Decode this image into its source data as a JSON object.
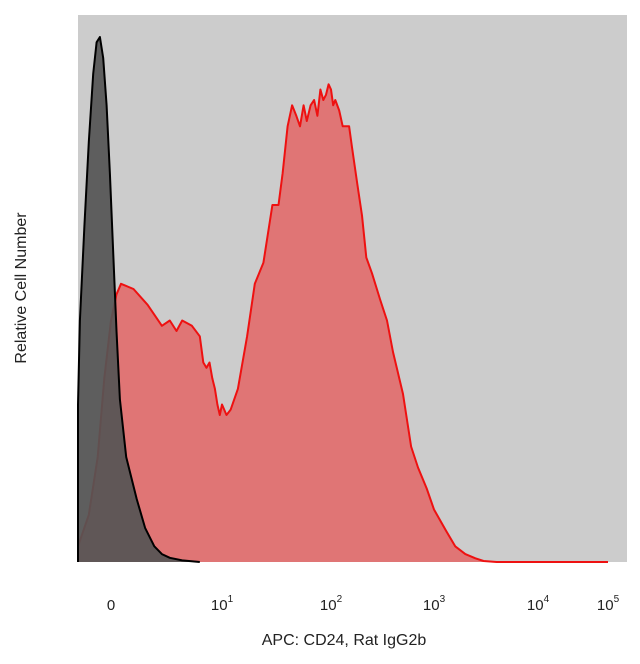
{
  "chart_data": {
    "type": "area",
    "title": "",
    "xlabel": "APC: CD24, Rat IgG2b",
    "ylabel": "Relative Cell Number",
    "x_scale": "biexponential",
    "x_ticks": [
      {
        "value": 0,
        "base": "0",
        "exp": ""
      },
      {
        "value": 10,
        "base": "10",
        "exp": "1"
      },
      {
        "value": 100,
        "base": "10",
        "exp": "2"
      },
      {
        "value": 1000,
        "base": "10",
        "exp": "3"
      },
      {
        "value": 10000,
        "base": "10",
        "exp": "4"
      },
      {
        "value": 100000,
        "base": "10",
        "exp": "5"
      }
    ],
    "ylim": [
      0,
      100
    ],
    "grid": false,
    "legend": "none",
    "background_color": "#cccccc",
    "series": [
      {
        "color": "#555555",
        "line_color": "#000000",
        "points": [
          [
            -5.2,
            0
          ],
          [
            -4.8,
            1
          ],
          [
            -4.4,
            4
          ],
          [
            -4.0,
            9
          ],
          [
            -3.6,
            18
          ],
          [
            -3.2,
            30
          ],
          [
            -2.8,
            46
          ],
          [
            -2.4,
            64
          ],
          [
            -2.0,
            80
          ],
          [
            -1.6,
            93
          ],
          [
            -1.3,
            99
          ],
          [
            -1.0,
            100
          ],
          [
            -0.7,
            96
          ],
          [
            -0.4,
            87
          ],
          [
            -0.1,
            74
          ],
          [
            0.2,
            59
          ],
          [
            0.5,
            44
          ],
          [
            0.8,
            31
          ],
          [
            1.1,
            20
          ],
          [
            1.4,
            12
          ],
          [
            1.7,
            6.5
          ],
          [
            2.1,
            3
          ],
          [
            2.5,
            1.5
          ],
          [
            3.0,
            0.8
          ],
          [
            4.0,
            0.3
          ],
          [
            6.0,
            0
          ]
        ]
      },
      {
        "color": "#e07575",
        "line_color": "#ee1111",
        "points": [
          [
            -5.2,
            0
          ],
          [
            -4.0,
            1
          ],
          [
            -3.0,
            3
          ],
          [
            -2.0,
            9
          ],
          [
            -1.2,
            20
          ],
          [
            -0.6,
            35
          ],
          [
            0,
            46
          ],
          [
            0.5,
            51
          ],
          [
            0.9,
            53
          ],
          [
            1.3,
            52
          ],
          [
            1.8,
            49
          ],
          [
            2.5,
            45
          ],
          [
            3.0,
            46
          ],
          [
            3.5,
            44
          ],
          [
            4.0,
            46
          ],
          [
            5.0,
            45
          ],
          [
            6.0,
            43
          ],
          [
            6.5,
            38
          ],
          [
            7.0,
            37
          ],
          [
            7.5,
            38
          ],
          [
            8.0,
            35
          ],
          [
            8.5,
            33
          ],
          [
            9.0,
            30
          ],
          [
            9.5,
            28
          ],
          [
            10,
            30
          ],
          [
            11,
            28
          ],
          [
            12,
            29
          ],
          [
            14,
            33
          ],
          [
            17,
            43
          ],
          [
            20,
            53
          ],
          [
            24,
            57
          ],
          [
            29,
            68
          ],
          [
            33,
            68
          ],
          [
            36,
            74
          ],
          [
            40,
            83
          ],
          [
            44,
            87
          ],
          [
            48,
            85
          ],
          [
            52,
            83
          ],
          [
            56,
            87
          ],
          [
            60,
            84
          ],
          [
            65,
            87
          ],
          [
            70,
            88
          ],
          [
            75,
            85
          ],
          [
            80,
            90
          ],
          [
            85,
            88
          ],
          [
            90,
            89
          ],
          [
            95,
            91
          ],
          [
            100,
            90
          ],
          [
            105,
            87
          ],
          [
            110,
            88
          ],
          [
            120,
            86
          ],
          [
            130,
            83
          ],
          [
            150,
            83
          ],
          [
            160,
            79
          ],
          [
            180,
            72
          ],
          [
            200,
            66
          ],
          [
            220,
            58
          ],
          [
            250,
            55
          ],
          [
            300,
            50
          ],
          [
            350,
            46
          ],
          [
            400,
            40
          ],
          [
            500,
            32
          ],
          [
            600,
            22
          ],
          [
            700,
            18
          ],
          [
            850,
            14
          ],
          [
            1000,
            10
          ],
          [
            1300,
            6
          ],
          [
            1600,
            3
          ],
          [
            2000,
            1.5
          ],
          [
            2500,
            0.7
          ],
          [
            3000,
            0.2
          ],
          [
            4000,
            0
          ],
          [
            100000,
            0
          ]
        ]
      }
    ]
  }
}
